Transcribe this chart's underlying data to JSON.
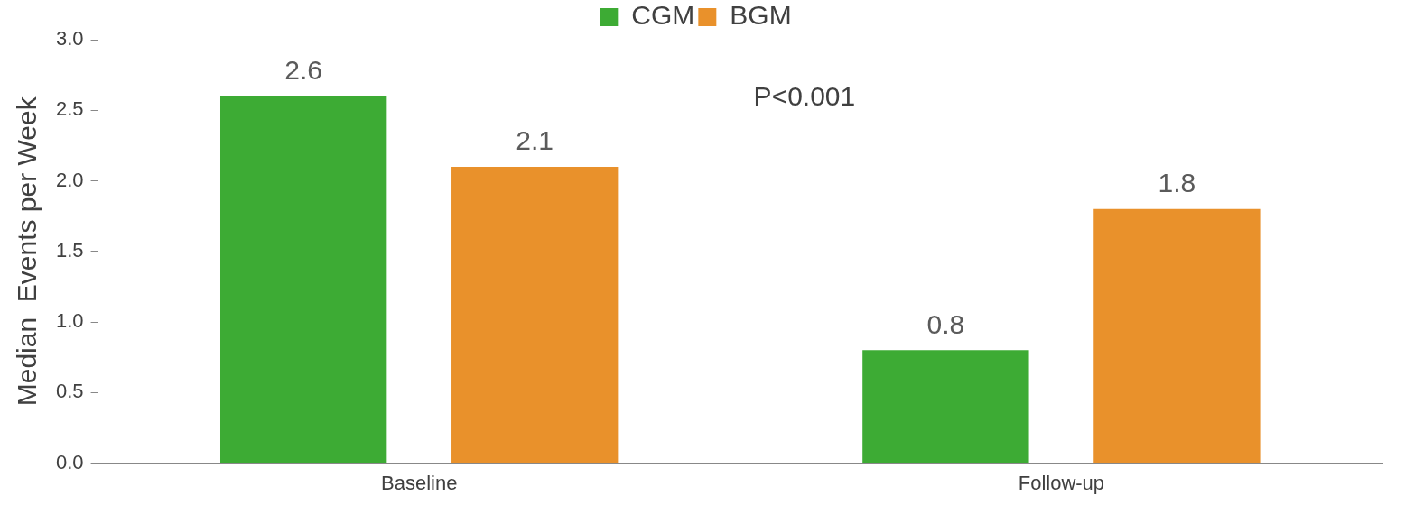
{
  "chart_data": {
    "type": "bar",
    "ylabel": "Median  Events per Week",
    "categories": [
      "Baseline",
      "Follow-up"
    ],
    "series": [
      {
        "name": "CGM",
        "color": "#3dab34",
        "values": [
          2.6,
          0.8
        ]
      },
      {
        "name": "BGM",
        "color": "#e9912b",
        "values": [
          2.1,
          1.8
        ]
      }
    ],
    "ylim": [
      0,
      3
    ],
    "yticks": [
      {
        "value": 0,
        "label": "0.0"
      },
      {
        "value": 0.5,
        "label": "0.5"
      },
      {
        "value": 1,
        "label": "1.0"
      },
      {
        "value": 1.5,
        "label": "1.5"
      },
      {
        "value": 2,
        "label": "2.0"
      },
      {
        "value": 2.5,
        "label": "2.5"
      },
      {
        "value": 3,
        "label": "3.0"
      }
    ],
    "grid": false,
    "legend": "top",
    "data_labels": true,
    "annotations": [
      "P<0.001"
    ]
  }
}
